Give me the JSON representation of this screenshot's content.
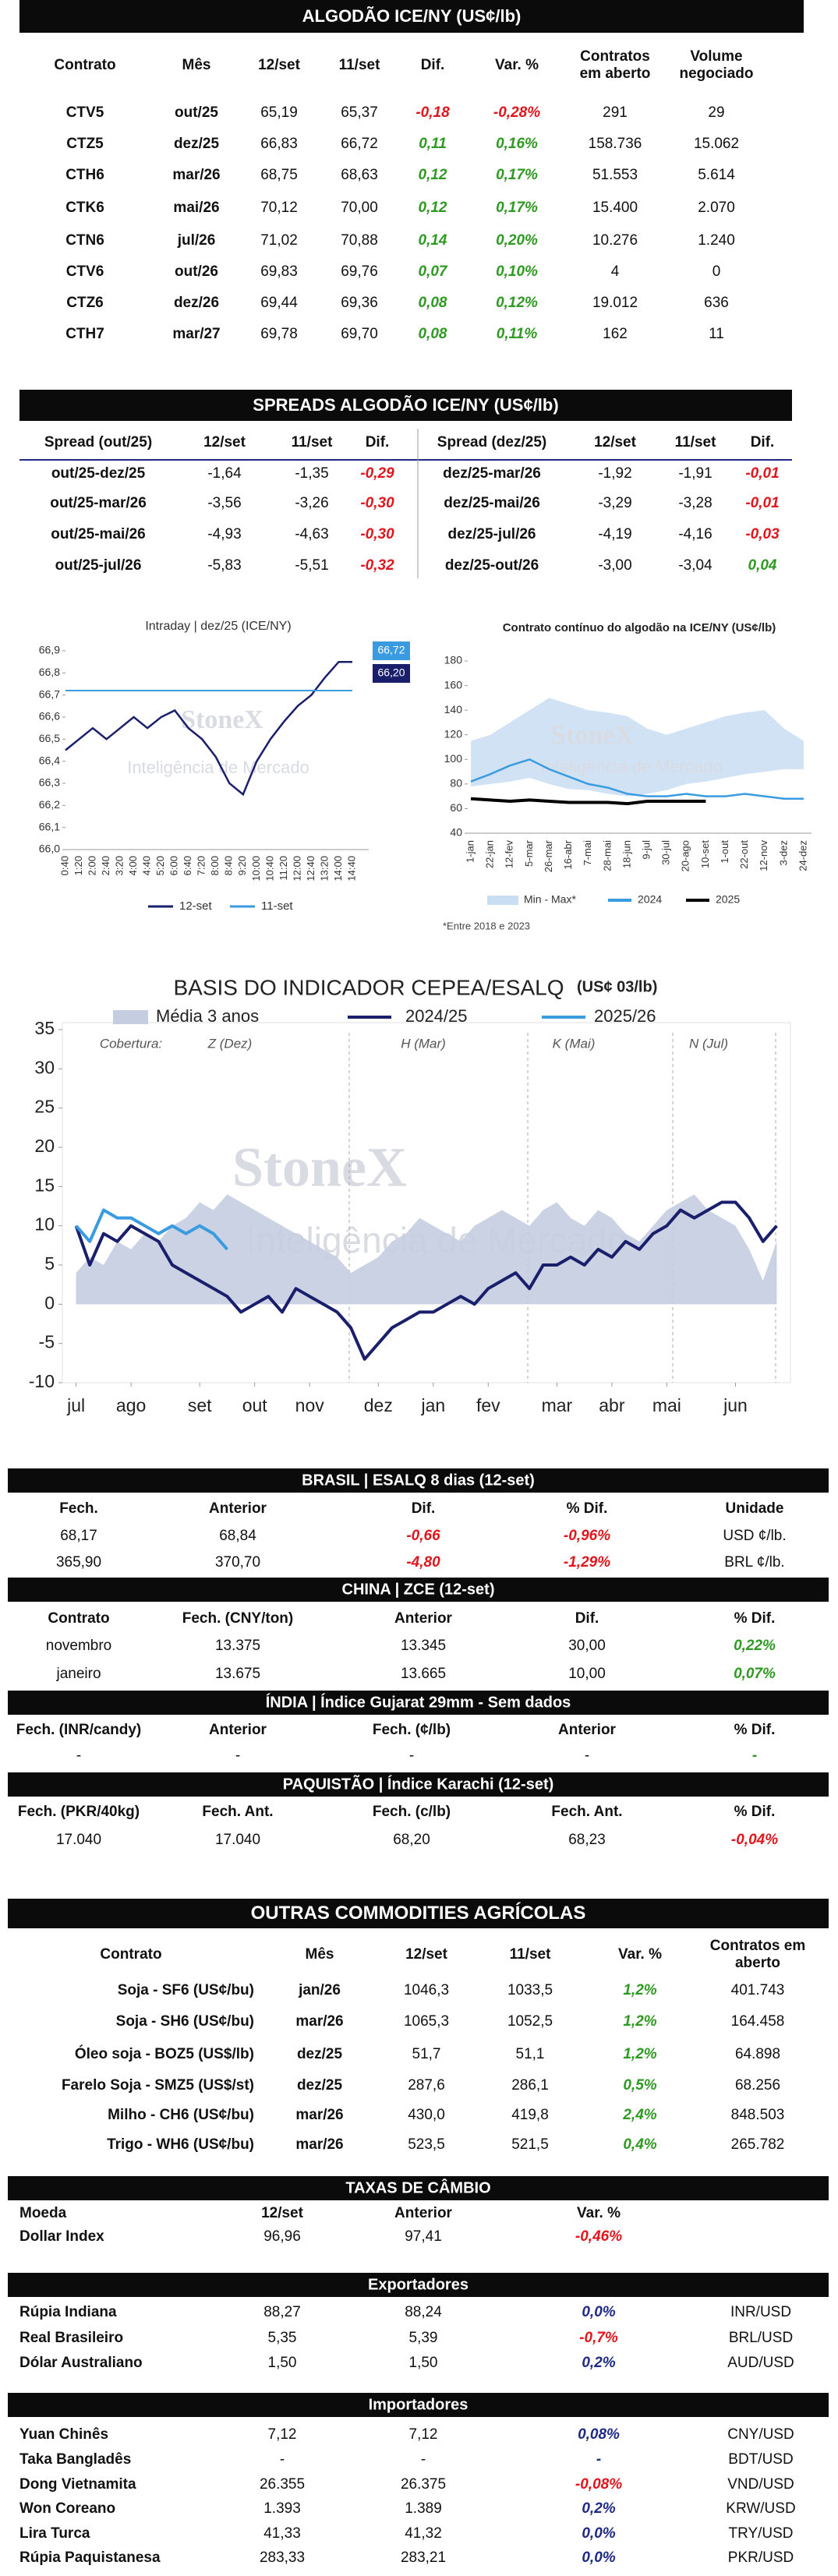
{
  "algodao_ice": {
    "title": "ALGODÃO ICE/NY (US¢/lb)",
    "positive_color": "#2f9a22",
    "negative_color": "#e3151c",
    "columns": [
      "Contrato",
      "Mês",
      "12/set",
      "11/set",
      "Dif.",
      "Var. %",
      "Contratos em aberto",
      "Volume negociado"
    ],
    "rows": [
      [
        "CTV5",
        "out/25",
        "65,19",
        "65,37",
        "-0,18",
        "-0,28%",
        "291",
        "29"
      ],
      [
        "CTZ5",
        "dez/25",
        "66,83",
        "66,72",
        "0,11",
        "0,16%",
        "158.736",
        "15.062"
      ],
      [
        "CTH6",
        "mar/26",
        "68,75",
        "68,63",
        "0,12",
        "0,17%",
        "51.553",
        "5.614"
      ],
      [
        "CTK6",
        "mai/26",
        "70,12",
        "70,00",
        "0,12",
        "0,17%",
        "15.400",
        "2.070"
      ],
      [
        "CTN6",
        "jul/26",
        "71,02",
        "70,88",
        "0,14",
        "0,20%",
        "10.276",
        "1.240"
      ],
      [
        "CTV6",
        "out/26",
        "69,83",
        "69,76",
        "0,07",
        "0,10%",
        "4",
        "0"
      ],
      [
        "CTZ6",
        "dez/26",
        "69,44",
        "69,36",
        "0,08",
        "0,12%",
        "19.012",
        "636"
      ],
      [
        "CTH7",
        "mar/27",
        "69,78",
        "69,70",
        "0,08",
        "0,11%",
        "162",
        "11"
      ]
    ]
  },
  "spreads": {
    "title": "SPREADS ALGODÃO ICE/NY (US¢/lb)",
    "positive_color": "#2f9a22",
    "negative_color": "#e3151c",
    "left": {
      "columns": [
        "Spread (out/25)",
        "12/set",
        "11/set",
        "Dif."
      ],
      "rows": [
        [
          "out/25-dez/25",
          "-1,64",
          "-1,35",
          "-0,29"
        ],
        [
          "out/25-mar/26",
          "-3,56",
          "-3,26",
          "-0,30"
        ],
        [
          "out/25-mai/26",
          "-4,93",
          "-4,63",
          "-0,30"
        ],
        [
          "out/25-jul/26",
          "-5,83",
          "-5,51",
          "-0,32"
        ]
      ]
    },
    "right": {
      "columns": [
        "Spread (dez/25)",
        "12/set",
        "11/set",
        "Dif."
      ],
      "rows": [
        [
          "dez/25-mar/26",
          "-1,92",
          "-1,91",
          "-0,01"
        ],
        [
          "dez/25-mai/26",
          "-3,29",
          "-3,28",
          "-0,01"
        ],
        [
          "dez/25-jul/26",
          "-4,19",
          "-4,16",
          "-0,03"
        ],
        [
          "dez/25-out/26",
          "-3,00",
          "-3,04",
          "0,04"
        ]
      ]
    }
  },
  "chart_data": [
    {
      "type": "line",
      "title": "Intraday | dez/25 (ICE/NY)",
      "categories": [
        "0:40",
        "1:20",
        "2:00",
        "2:40",
        "3:20",
        "4:00",
        "4:40",
        "5:20",
        "6:00",
        "6:40",
        "7:20",
        "8:00",
        "8:40",
        "9:20",
        "10:00",
        "10:40",
        "11:20",
        "12:00",
        "12:40",
        "13:20",
        "14:00",
        "14:40"
      ],
      "ylim": [
        66.0,
        66.9
      ],
      "yticks": [
        {
          "value": 66.0,
          "label": "66,0"
        },
        {
          "value": 66.1,
          "label": "66,1"
        },
        {
          "value": 66.2,
          "label": "66,2"
        },
        {
          "value": 66.3,
          "label": "66,3"
        },
        {
          "value": 66.4,
          "label": "66,4"
        },
        {
          "value": 66.5,
          "label": "66,5"
        },
        {
          "value": 66.6,
          "label": "66,6"
        },
        {
          "value": 66.7,
          "label": "66,7"
        },
        {
          "value": 66.8,
          "label": "66,8"
        },
        {
          "value": 66.9,
          "label": "66,9"
        }
      ],
      "series": [
        {
          "name": "12-set",
          "color": "#1a1f6b",
          "values": [
            66.45,
            66.5,
            66.55,
            66.5,
            66.55,
            66.6,
            66.55,
            66.6,
            66.63,
            66.55,
            66.5,
            66.42,
            66.3,
            66.25,
            66.4,
            66.5,
            66.58,
            66.65,
            66.7,
            66.78,
            66.85,
            66.85
          ]
        },
        {
          "name": "11-set",
          "color": "#3a9be0",
          "values": [
            66.72,
            66.72,
            66.72,
            66.72,
            66.72,
            66.72,
            66.72,
            66.72,
            66.72,
            66.72,
            66.72,
            66.72,
            66.72,
            66.72,
            66.72,
            66.72,
            66.72,
            66.72,
            66.72,
            66.72,
            66.72,
            66.72
          ]
        }
      ],
      "annotations": [
        "66,72",
        "66,20"
      ],
      "watermark": {
        "brand": "StoneX",
        "tagline": "Inteligência de Mercado"
      }
    },
    {
      "type": "line",
      "title": "Contrato contínuo do algodão na ICE/NY (US¢/lb)",
      "categories": [
        "1-jan",
        "22-jan",
        "12-fev",
        "5-mar",
        "26-mar",
        "16-abr",
        "7-mai",
        "28-mai",
        "18-jun",
        "9-jul",
        "30-jul",
        "20-ago",
        "10-set",
        "1-out",
        "22-out",
        "12-nov",
        "3-dez",
        "24-dez"
      ],
      "ylim": [
        40,
        180
      ],
      "yticks": [
        40,
        60,
        80,
        100,
        120,
        140,
        160,
        180
      ],
      "band": {
        "name": "Min - Max*",
        "color": "#c9ddf3",
        "low": [
          78,
          80,
          82,
          85,
          80,
          76,
          75,
          72,
          70,
          72,
          75,
          80,
          82,
          85,
          88,
          90,
          92,
          92
        ],
        "high": [
          115,
          120,
          130,
          140,
          150,
          145,
          140,
          138,
          135,
          125,
          120,
          125,
          130,
          135,
          138,
          140,
          125,
          115
        ]
      },
      "series": [
        {
          "name": "2024",
          "color": "#3a9be0",
          "values": [
            82,
            88,
            95,
            100,
            92,
            86,
            80,
            77,
            72,
            70,
            70,
            72,
            70,
            70,
            72,
            70,
            68,
            68
          ]
        },
        {
          "name": "2025",
          "color": "#000000",
          "values": [
            68,
            67,
            66,
            67,
            66,
            65,
            65,
            65,
            64,
            66,
            66,
            66,
            66,
            null,
            null,
            null,
            null,
            null
          ]
        }
      ],
      "note": "*Entre 2018 e 2023",
      "watermark": {
        "brand": "StoneX",
        "tagline": "Inteligência de Mercado"
      }
    },
    {
      "type": "line",
      "title": "BASIS DO INDICADOR CEPEA/ESALQ",
      "subtitle": "(US¢ 03/lb)",
      "x": [
        0,
        1,
        2,
        3,
        4,
        5,
        6,
        7,
        8,
        9,
        10,
        11,
        12,
        13,
        14,
        15,
        16,
        17,
        18,
        19,
        20,
        21,
        22,
        23,
        24,
        25,
        26,
        27,
        28,
        29,
        30,
        31,
        32,
        33,
        34,
        35,
        36,
        37,
        38,
        39,
        40,
        41,
        42,
        43,
        44,
        45,
        46,
        47,
        48,
        49,
        50,
        51
      ],
      "xlim": [
        -1,
        52
      ],
      "xticks": [
        {
          "value": 0,
          "label": "jul"
        },
        {
          "value": 4,
          "label": "ago"
        },
        {
          "value": 9,
          "label": "set"
        },
        {
          "value": 13,
          "label": "out"
        },
        {
          "value": 17,
          "label": "nov"
        },
        {
          "value": 22,
          "label": "dez"
        },
        {
          "value": 26,
          "label": "jan"
        },
        {
          "value": 30,
          "label": "fev"
        },
        {
          "value": 35,
          "label": "mar"
        },
        {
          "value": 39,
          "label": "abr"
        },
        {
          "value": 43,
          "label": "mai"
        },
        {
          "value": 48,
          "label": "jun"
        }
      ],
      "ylim": [
        -10,
        35
      ],
      "yticks": [
        -10,
        -5,
        0,
        5,
        10,
        15,
        20,
        25,
        30,
        35
      ],
      "series": [
        {
          "name": "Média 3 anos",
          "color": "#c5cde0",
          "kind": "area",
          "values": [
            4,
            6,
            5,
            8,
            7,
            9,
            8,
            10,
            11,
            13,
            12,
            14,
            13,
            12,
            11,
            10,
            9,
            8,
            7,
            6,
            4,
            5,
            6,
            8,
            9,
            11,
            10,
            9,
            8,
            10,
            11,
            12,
            11,
            10,
            12,
            13,
            11,
            10,
            12,
            11,
            9,
            8,
            10,
            12,
            13,
            14,
            12,
            11,
            10,
            7,
            3,
            8
          ]
        },
        {
          "name": "2024/25",
          "color": "#1a1f6b",
          "values": [
            10,
            5,
            9,
            8,
            10,
            9,
            8,
            5,
            4,
            3,
            2,
            1,
            -1,
            0,
            1,
            -1,
            2,
            1,
            0,
            -1,
            -3,
            -7,
            -5,
            -3,
            -2,
            -1,
            -1,
            0,
            1,
            0,
            2,
            3,
            4,
            2,
            5,
            5,
            6,
            5,
            7,
            6,
            8,
            7,
            9,
            10,
            12,
            11,
            12,
            13,
            13,
            11,
            8,
            10
          ]
        },
        {
          "name": "2025/26",
          "color": "#3a9be0",
          "values": [
            10,
            8,
            12,
            11,
            11,
            10,
            9,
            10,
            9,
            10,
            9,
            7,
            null,
            null,
            null,
            null,
            null,
            null,
            null,
            null,
            null,
            null,
            null,
            null,
            null,
            null,
            null,
            null,
            null,
            null,
            null,
            null,
            null,
            null,
            null,
            null,
            null,
            null,
            null,
            null,
            null,
            null,
            null,
            null,
            null,
            null,
            null,
            null,
            null,
            null,
            null,
            null
          ]
        }
      ],
      "annotations": [
        "Cobertura:",
        "Z (Dez)",
        "H (Mar)",
        "K (Mai)",
        "N (Jul)"
      ],
      "watermark": {
        "brand": "StoneX",
        "tagline": "Inteligência de Mercado"
      }
    }
  ],
  "brasil": {
    "title": "BRASIL | ESALQ 8 dias (12-set)",
    "positive_color": "#2f9a22",
    "negative_color": "#e3151c",
    "columns": [
      "Fech.",
      "Anterior",
      "Dif.",
      "% Dif.",
      "Unidade"
    ],
    "rows": [
      [
        "68,17",
        "68,84",
        "-0,66",
        "-0,96%",
        "USD ¢/lb."
      ],
      [
        "365,90",
        "370,70",
        "-4,80",
        "-1,29%",
        "BRL ¢/lb."
      ]
    ]
  },
  "china": {
    "title": "CHINA | ZCE (12-set)",
    "positive_color": "#2f9a22",
    "negative_color": "#e3151c",
    "columns": [
      "Contrato",
      "Fech. (CNY/ton)",
      "Anterior",
      "Dif.",
      "% Dif."
    ],
    "rows": [
      [
        "novembro",
        "13.375",
        "13.345",
        "30,00",
        "0,22%"
      ],
      [
        "janeiro",
        "13.675",
        "13.665",
        "10,00",
        "0,07%"
      ]
    ]
  },
  "india": {
    "title": "ÍNDIA | Índice Gujarat 29mm - Sem dados",
    "positive_color": "#2f9a22",
    "negative_color": "#e3151c",
    "columns": [
      "Fech. (INR/candy)",
      "Anterior",
      "Fech. (¢/lb)",
      "Anterior",
      "% Dif."
    ],
    "rows": [
      [
        "-",
        "-",
        "-",
        "-",
        "-"
      ]
    ]
  },
  "paquistao": {
    "title": "PAQUISTÃO | Índice Karachi (12-set)",
    "positive_color": "#2f9a22",
    "negative_color": "#e3151c",
    "columns": [
      "Fech. (PKR/40kg)",
      "Fech. Ant.",
      "Fech. (c/lb)",
      "Fech. Ant.",
      "% Dif."
    ],
    "rows": [
      [
        "17.040",
        "17.040",
        "68,20",
        "68,23",
        "-0,04%"
      ]
    ]
  },
  "outras": {
    "title": "OUTRAS COMMODITIES AGRÍCOLAS",
    "positive_color": "#2f9a22",
    "negative_color": "#e3151c",
    "columns": [
      "Contrato",
      "Mês",
      "12/set",
      "11/set",
      "Var. %",
      "Contratos em aberto"
    ],
    "rows": [
      [
        "Soja - SF6 (US¢/bu)",
        "jan/26",
        "1046,3",
        "1033,5",
        "1,2%",
        "401.743"
      ],
      [
        "Soja - SH6 (US¢/bu)",
        "mar/26",
        "1065,3",
        "1052,5",
        "1,2%",
        "164.458"
      ],
      [
        "Óleo soja - BOZ5 (US$/lb)",
        "dez/25",
        "51,7",
        "51,1",
        "1,2%",
        "64.898"
      ],
      [
        "Farelo Soja - SMZ5 (US$/st)",
        "dez/25",
        "287,6",
        "286,1",
        "0,5%",
        "68.256"
      ],
      [
        "Milho - CH6 (US¢/bu)",
        "mar/26",
        "430,0",
        "419,8",
        "2,4%",
        "848.503"
      ],
      [
        "Trigo - WH6 (US¢/bu)",
        "mar/26",
        "523,5",
        "521,5",
        "0,4%",
        "265.782"
      ]
    ]
  },
  "cambio": {
    "title": "TAXAS DE CÂMBIO",
    "positive_color": "#1f2a87",
    "negative_color": "#e3151c",
    "columns": [
      "Moeda",
      "12/set",
      "Anterior",
      "Var. %"
    ],
    "rows": [
      [
        "Dollar Index",
        "96,96",
        "97,41",
        "-0,46%"
      ]
    ]
  },
  "exportadores": {
    "title": "Exportadores",
    "positive_color": "#1f2a87",
    "negative_color": "#e3151c",
    "rows": [
      [
        "Rúpia Indiana",
        "88,27",
        "88,24",
        "0,0%",
        "INR/USD"
      ],
      [
        "Real Brasileiro",
        "5,35",
        "5,39",
        "-0,7%",
        "BRL/USD"
      ],
      [
        "Dólar Australiano",
        "1,50",
        "1,50",
        "0,2%",
        "AUD/USD"
      ]
    ]
  },
  "importadores": {
    "title": "Importadores",
    "positive_color": "#1f2a87",
    "negative_color": "#e3151c",
    "rows": [
      [
        "Yuan Chinês",
        "7,12",
        "7,12",
        "0,08%",
        "CNY/USD"
      ],
      [
        "Taka Bangladês",
        "-",
        "-",
        "-",
        "BDT/USD"
      ],
      [
        "Dong Vietnamita",
        "26.355",
        "26.375",
        "-0,08%",
        "VND/USD"
      ],
      [
        "Won Coreano",
        "1.393",
        "1.389",
        "0,2%",
        "KRW/USD"
      ],
      [
        "Lira Turca",
        "41,33",
        "41,32",
        "0,0%",
        "TRY/USD"
      ],
      [
        "Rúpia Paquistanesa",
        "283,33",
        "283,21",
        "0,0%",
        "PKR/USD"
      ]
    ]
  }
}
